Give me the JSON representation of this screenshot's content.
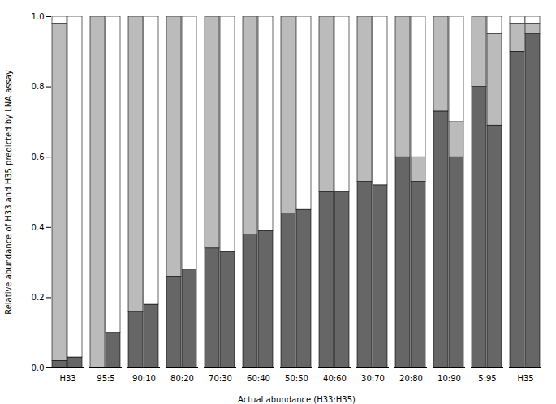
{
  "chart_data": {
    "type": "bar",
    "stacked": true,
    "grid": false,
    "xlabel": "Actual abundance (H33:H35)",
    "ylabel": "Relative abundance of H33 and H35 predicted by LNA assay",
    "categories": [
      "H33",
      "95:5",
      "90:10",
      "80:20",
      "70:30",
      "60:40",
      "50:50",
      "40:60",
      "30:70",
      "20:80",
      "10:90",
      "5:95",
      "H35"
    ],
    "ylim": [
      0,
      1
    ],
    "yticks": [
      {
        "value": 0,
        "label": "0.0"
      },
      0.2,
      0.4,
      0.6,
      0.8,
      {
        "value": 1,
        "label": "1.0"
      }
    ],
    "groups": [
      {
        "series": [
          {
            "color": "#666666",
            "values": [
              0.02,
              0.0,
              0.16,
              0.26,
              0.34,
              0.38,
              0.44,
              0.5,
              0.53,
              0.6,
              0.73,
              0.8,
              0.9
            ]
          },
          {
            "color": "#bbbbbb",
            "values": [
              0.96,
              1.0,
              0.84,
              0.74,
              0.66,
              0.62,
              0.56,
              0.5,
              0.47,
              0.4,
              0.27,
              0.2,
              0.08
            ]
          },
          {
            "color": "#ffffff",
            "values": [
              0.02,
              0.0,
              0.0,
              0.0,
              0.0,
              0.0,
              0.0,
              0.0,
              0.0,
              0.0,
              0.0,
              0.0,
              0.02
            ]
          }
        ]
      },
      {
        "series": [
          {
            "color": "#666666",
            "values": [
              0.03,
              0.1,
              0.18,
              0.28,
              0.33,
              0.39,
              0.45,
              0.5,
              0.52,
              0.53,
              0.6,
              0.69,
              0.95
            ]
          },
          {
            "color": "#bbbbbb",
            "values": [
              0.0,
              0.0,
              0.0,
              0.0,
              0.0,
              0.0,
              0.0,
              0.0,
              0.0,
              0.07,
              0.1,
              0.26,
              0.03
            ]
          },
          {
            "color": "#ffffff",
            "values": [
              0.97,
              0.9,
              0.82,
              0.72,
              0.67,
              0.61,
              0.55,
              0.5,
              0.48,
              0.4,
              0.3,
              0.05,
              0.02
            ]
          }
        ]
      }
    ]
  }
}
